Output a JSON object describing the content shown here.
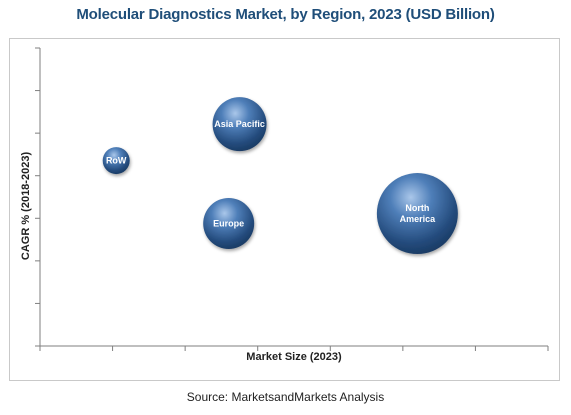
{
  "chart_data": {
    "type": "scatter",
    "title": "Molecular Diagnostics Market, by Region, 2023 (USD Billion)",
    "xlabel": "Market Size (2023)",
    "ylabel": "CAGR % (2018-2023)",
    "grid": false,
    "legend": "none",
    "bubble_color": "#2e5d96",
    "bubbles": [
      {
        "label": "RoW",
        "x": 1.05,
        "y": 5.6,
        "size": 0.45
      },
      {
        "label": "Asia Pacific",
        "x": 2.75,
        "y": 6.7,
        "size": 0.9
      },
      {
        "label": "Europe",
        "x": 2.6,
        "y": 3.7,
        "size": 0.85
      },
      {
        "label": "North America",
        "x": 5.2,
        "y": 4.0,
        "size": 1.35
      }
    ],
    "xlim": [
      0,
      7
    ],
    "ylim": [
      0,
      9
    ]
  },
  "source": "Source: MarketsandMarkets Analysis"
}
